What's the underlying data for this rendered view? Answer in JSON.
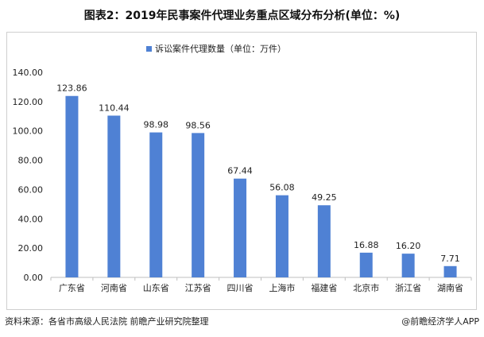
{
  "title": "图表2：2019年民事案件代理业务重点区域分布分析(单位：%)",
  "source": "资料来源：各省市高级人民法院 前瞻产业研究院整理",
  "brand": "@前瞻经济学人APP",
  "colors": {
    "bar": "#4f81d4",
    "axis": "#bfbfbf",
    "text": "#222222"
  },
  "chart_data": {
    "type": "bar",
    "categories": [
      "广东省",
      "河南省",
      "山东省",
      "江苏省",
      "四川省",
      "上海市",
      "福建省",
      "北京市",
      "浙江省",
      "湖南省"
    ],
    "series": [
      {
        "name": "诉讼案件代理数量（单位：万件）",
        "values": [
          123.86,
          110.44,
          98.98,
          98.56,
          67.44,
          56.08,
          49.25,
          16.88,
          16.2,
          7.71
        ]
      }
    ],
    "data_labels": [
      "123.86",
      "110.44",
      "98.98",
      "98.56",
      "67.44",
      "56.08",
      "49.25",
      "16.88",
      "16.20",
      "7.71"
    ],
    "yticks": [
      "0.00",
      "20.00",
      "40.00",
      "60.00",
      "80.00",
      "100.00",
      "120.00",
      "140.00"
    ],
    "ylim": [
      0,
      140
    ],
    "legend_position": "top-center",
    "grid": false
  }
}
